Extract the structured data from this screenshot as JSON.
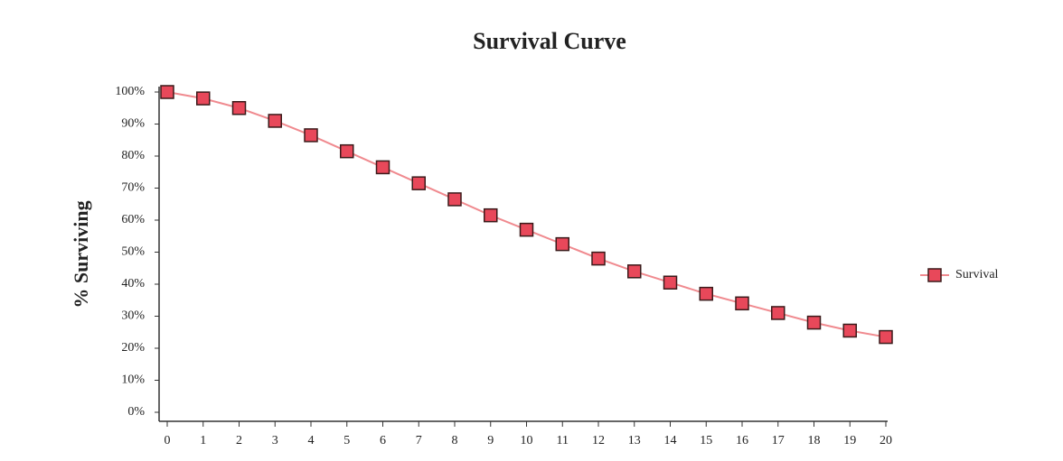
{
  "chart_data": {
    "type": "line",
    "title": "Survival Curve",
    "y_label": "% Surviving",
    "x": [
      0,
      1,
      2,
      3,
      4,
      5,
      6,
      7,
      8,
      9,
      10,
      11,
      12,
      13,
      14,
      15,
      16,
      17,
      18,
      19,
      20
    ],
    "series": [
      {
        "name": "Survival",
        "color": "#f08a8f",
        "marker_color": "#e8485a",
        "values": [
          100,
          98,
          95,
          91,
          86.5,
          81.5,
          76.5,
          71.5,
          66.5,
          61.5,
          57,
          52.5,
          48,
          44,
          40.5,
          37,
          34,
          31,
          28,
          25.5,
          23.5
        ]
      }
    ],
    "xlim": [
      0,
      20
    ],
    "xticks": [
      0,
      1,
      2,
      3,
      4,
      5,
      6,
      7,
      8,
      9,
      10,
      11,
      12,
      13,
      14,
      15,
      16,
      17,
      18,
      19,
      20
    ],
    "ylim": [
      0,
      100
    ],
    "yticks": [
      {
        "value": 0,
        "label": "0%"
      },
      {
        "value": 10,
        "label": "10%"
      },
      {
        "value": 20,
        "label": "20%"
      },
      {
        "value": 30,
        "label": "30%"
      },
      {
        "value": 40,
        "label": "40%"
      },
      {
        "value": 50,
        "label": "50%"
      },
      {
        "value": 60,
        "label": "60%"
      },
      {
        "value": 70,
        "label": "70%"
      },
      {
        "value": 80,
        "label": "80%"
      },
      {
        "value": 90,
        "label": "90%"
      },
      {
        "value": 100,
        "label": "100%"
      }
    ],
    "legend": "right"
  }
}
